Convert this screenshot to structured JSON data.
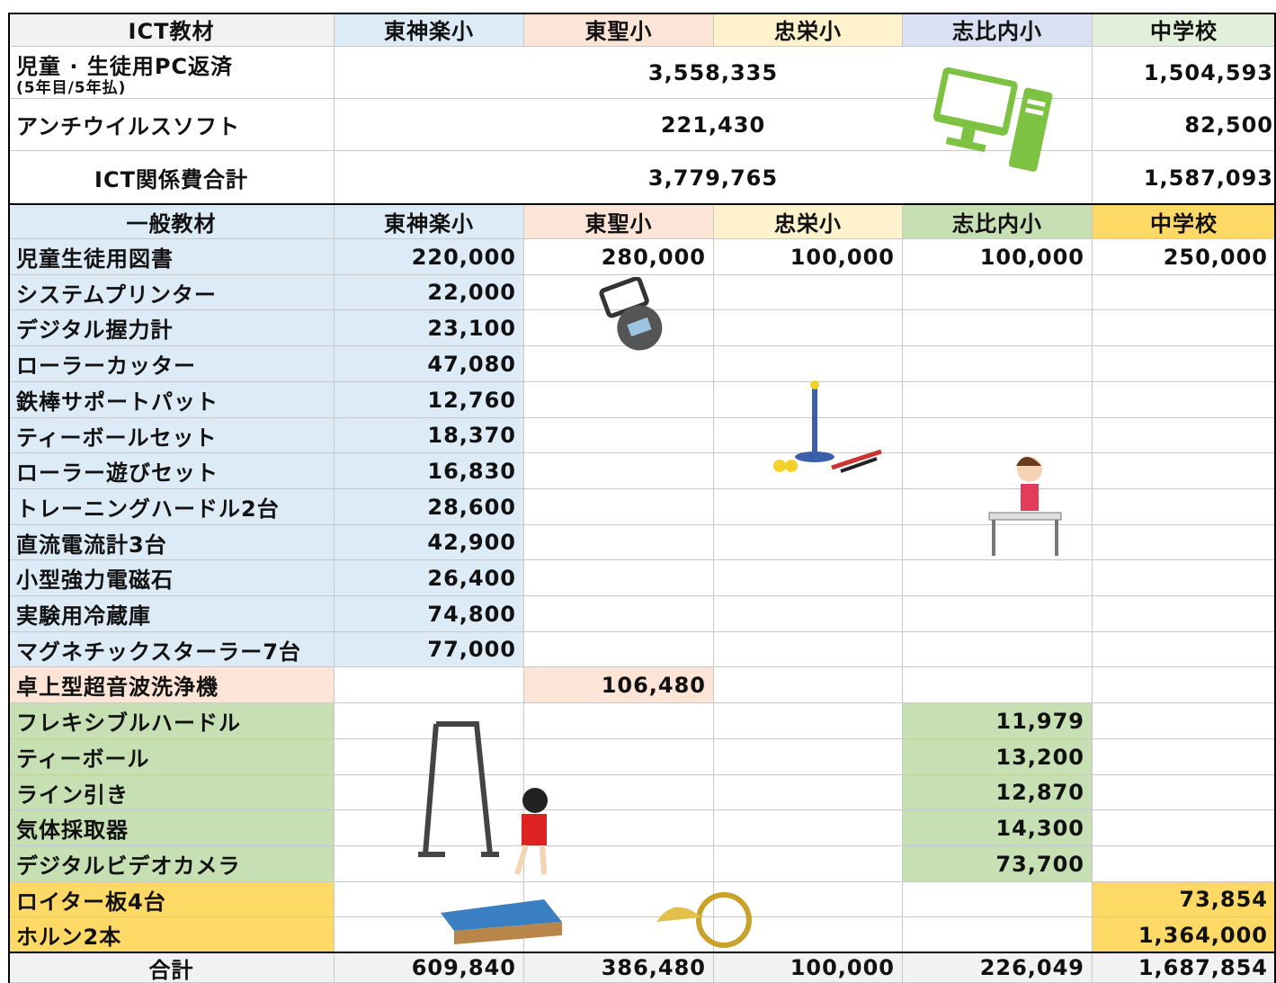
{
  "ict_header": [
    "ICT教材",
    "東神楽小",
    "東聖小",
    "忠栄小",
    "志比内小",
    "中学校"
  ],
  "ict_rows": [
    {
      "label": "児童 · 生徒用PC返済",
      "sublabel": "(5年目/5年払)",
      "elementary": "3,558,335",
      "junior": "1,504,593"
    },
    {
      "label": "アンチウイルスソフト",
      "elementary": "221,430",
      "junior": "82,500"
    },
    {
      "label": "ICT関係費合計",
      "elementary": "3,779,765",
      "junior": "1,587,093"
    }
  ],
  "general_header": [
    "一般教材",
    "東神楽小",
    "東聖小",
    "忠栄小",
    "志比内小",
    "中学校"
  ],
  "general_rows": [
    {
      "label": "児童生徒用図書",
      "values": [
        "220,000",
        "280,000",
        "100,000",
        "100,000",
        "250,000"
      ]
    },
    {
      "label": "システムプリンター",
      "values": [
        "22,000",
        null,
        null,
        null,
        null
      ]
    },
    {
      "label": "デジタル握力計",
      "values": [
        "23,100",
        null,
        null,
        null,
        null
      ]
    },
    {
      "label": "ローラーカッター",
      "values": [
        "47,080",
        null,
        null,
        null,
        null
      ]
    },
    {
      "label": "鉄棒サポートパット",
      "values": [
        "12,760",
        null,
        null,
        null,
        null
      ]
    },
    {
      "label": "ティーボールセット",
      "values": [
        "18,370",
        null,
        null,
        null,
        null
      ]
    },
    {
      "label": "ローラー遊びセット",
      "values": [
        "16,830",
        null,
        null,
        null,
        null
      ]
    },
    {
      "label": "トレーニングハードル2台",
      "values": [
        "28,600",
        null,
        null,
        null,
        null
      ]
    },
    {
      "label": "直流電流計3台",
      "values": [
        "42,900",
        null,
        null,
        null,
        null
      ]
    },
    {
      "label": "小型強力電磁石",
      "values": [
        "26,400",
        null,
        null,
        null,
        null
      ]
    },
    {
      "label": "実験用冷蔵庫",
      "values": [
        "74,800",
        null,
        null,
        null,
        null
      ]
    },
    {
      "label": "マグネチックスターラー7台",
      "values": [
        "77,000",
        null,
        null,
        null,
        null
      ]
    },
    {
      "label": "卓上型超音波洗浄機",
      "values": [
        null,
        "106,480",
        null,
        null,
        null
      ]
    },
    {
      "label": "フレキシブルハードル",
      "values": [
        null,
        null,
        null,
        "11,979",
        null
      ]
    },
    {
      "label": "ティーボール",
      "values": [
        null,
        null,
        null,
        "13,200",
        null
      ]
    },
    {
      "label": "ライン引き",
      "values": [
        null,
        null,
        null,
        "12,870",
        null
      ]
    },
    {
      "label": "気体採取器",
      "values": [
        null,
        null,
        null,
        "14,300",
        null
      ]
    },
    {
      "label": "デジタルビデオカメラ",
      "values": [
        null,
        null,
        null,
        "73,700",
        null
      ]
    },
    {
      "label": "ロイター板4台",
      "values": [
        null,
        null,
        null,
        null,
        "73,854"
      ]
    },
    {
      "label": "ホルン2本",
      "values": [
        null,
        null,
        null,
        null,
        "1,364,000"
      ]
    }
  ],
  "total": {
    "label": "合計",
    "values": [
      "609,840",
      "386,480",
      "100,000",
      "226,049",
      "1,687,854"
    ]
  }
}
